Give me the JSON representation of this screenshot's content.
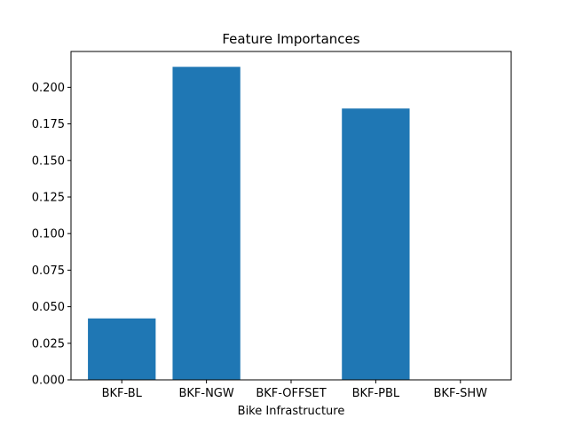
{
  "chart_data": {
    "type": "bar",
    "title": "Feature Importances",
    "xlabel": "Bike Infrastructure",
    "ylabel": "",
    "categories": [
      "BKF-BL",
      "BKF-NGW",
      "BKF-OFFSET",
      "BKF-PBL",
      "BKF-SHW"
    ],
    "values": [
      0.042,
      0.214,
      0.0,
      0.1855,
      0.0
    ],
    "ylim": [
      0,
      0.2245
    ],
    "yticks": [
      "0.000",
      "0.025",
      "0.050",
      "0.075",
      "0.100",
      "0.125",
      "0.150",
      "0.175",
      "0.200"
    ],
    "bar_color": "#1f77b4",
    "grid": false,
    "legend": "none"
  }
}
